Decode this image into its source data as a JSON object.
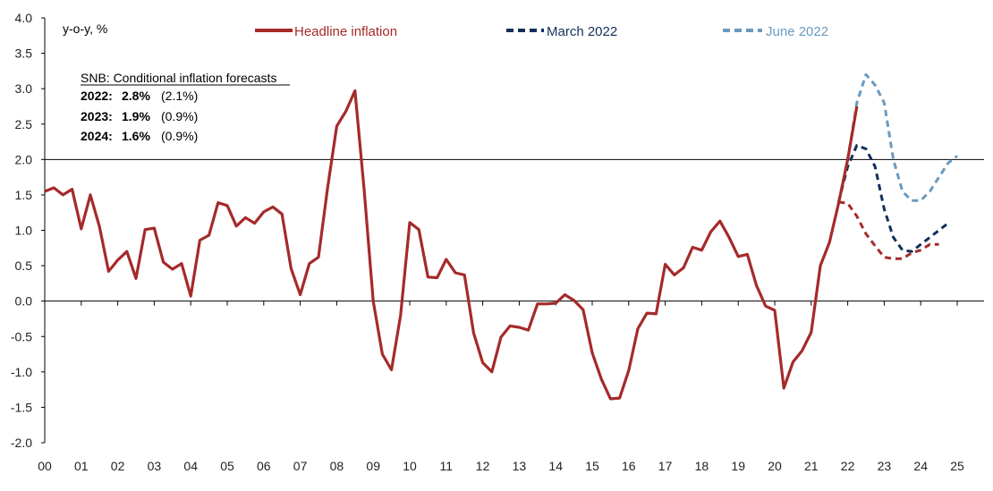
{
  "chart_data": {
    "type": "line",
    "ylabel": "y-o-y, %",
    "ylim": [
      -2.0,
      4.0
    ],
    "y_ticks": [
      "4.0",
      "3.5",
      "3.0",
      "2.5",
      "2.0",
      "1.5",
      "1.0",
      "0.5",
      "0.0",
      "-0.5",
      "-1.0",
      "-1.5",
      "-2.0"
    ],
    "x_ticks": [
      "00",
      "01",
      "02",
      "03",
      "04",
      "05",
      "06",
      "07",
      "08",
      "09",
      "10",
      "11",
      "12",
      "13",
      "14",
      "15",
      "16",
      "17",
      "18",
      "19",
      "20",
      "21",
      "22",
      "23",
      "24",
      "25"
    ],
    "reference_line": 2.0,
    "legend_position": "top",
    "note": {
      "title": "SNB: Conditional inflation forecasts",
      "rows": [
        {
          "year": "2022:",
          "value": "2.8%",
          "previous": "(2.1%)"
        },
        {
          "year": "2023:",
          "value": "1.9%",
          "previous": "(0.9%)"
        },
        {
          "year": "2024:",
          "value": "1.6%",
          "previous": "(0.9%)"
        }
      ]
    },
    "series": [
      {
        "name": "Headline inflation",
        "color": "#a52a2a",
        "style": "solid",
        "x": [
          2000.0,
          2000.25,
          2000.5,
          2000.75,
          2001.0,
          2001.25,
          2001.5,
          2001.75,
          2002.0,
          2002.25,
          2002.5,
          2002.75,
          2003.0,
          2003.25,
          2003.5,
          2003.75,
          2004.0,
          2004.25,
          2004.5,
          2004.75,
          2005.0,
          2005.25,
          2005.5,
          2005.75,
          2006.0,
          2006.25,
          2006.5,
          2006.75,
          2007.0,
          2007.25,
          2007.5,
          2007.75,
          2008.0,
          2008.25,
          2008.5,
          2008.75,
          2009.0,
          2009.25,
          2009.5,
          2009.75,
          2010.0,
          2010.25,
          2010.5,
          2010.75,
          2011.0,
          2011.25,
          2011.5,
          2011.75,
          2012.0,
          2012.25,
          2012.5,
          2012.75,
          2013.0,
          2013.25,
          2013.5,
          2013.75,
          2014.0,
          2014.25,
          2014.5,
          2014.75,
          2015.0,
          2015.25,
          2015.5,
          2015.75,
          2016.0,
          2016.25,
          2016.5,
          2016.75,
          2017.0,
          2017.25,
          2017.5,
          2017.75,
          2018.0,
          2018.25,
          2018.5,
          2018.75,
          2019.0,
          2019.25,
          2019.5,
          2019.75,
          2020.0,
          2020.25,
          2020.5,
          2020.75,
          2021.0,
          2021.25,
          2021.5,
          2021.75,
          2022.0,
          2022.25
        ],
        "values": [
          1.55,
          1.6,
          1.5,
          1.58,
          1.02,
          1.5,
          1.05,
          0.42,
          0.58,
          0.7,
          0.32,
          1.01,
          1.03,
          0.55,
          0.45,
          0.53,
          0.07,
          0.86,
          0.93,
          1.39,
          1.35,
          1.06,
          1.18,
          1.1,
          1.26,
          1.33,
          1.23,
          0.46,
          0.09,
          0.53,
          0.62,
          1.6,
          2.47,
          2.68,
          2.97,
          1.58,
          0.0,
          -0.75,
          -0.97,
          -0.2,
          1.11,
          1.01,
          0.34,
          0.33,
          0.59,
          0.4,
          0.37,
          -0.45,
          -0.87,
          -1.0,
          -0.51,
          -0.35,
          -0.37,
          -0.41,
          -0.04,
          -0.04,
          -0.03,
          0.09,
          0.01,
          -0.12,
          -0.73,
          -1.1,
          -1.38,
          -1.37,
          -0.98,
          -0.39,
          -0.17,
          -0.18,
          0.52,
          0.37,
          0.47,
          0.76,
          0.72,
          0.98,
          1.13,
          0.9,
          0.63,
          0.66,
          0.22,
          -0.07,
          -0.13,
          -1.23,
          -0.86,
          -0.7,
          -0.44,
          0.5,
          0.83,
          1.38,
          2.0,
          2.75
        ]
      },
      {
        "name": "March 2022",
        "color": "#12305a",
        "style": "dashed",
        "x": [
          2021.75,
          2022.0,
          2022.25,
          2022.5,
          2022.75,
          2023.0,
          2023.25,
          2023.5,
          2023.75,
          2024.0,
          2024.25,
          2024.5,
          2024.75
        ],
        "values": [
          1.4,
          1.9,
          2.2,
          2.15,
          1.9,
          1.3,
          0.9,
          0.72,
          0.7,
          0.8,
          0.9,
          1.0,
          1.1
        ]
      },
      {
        "name": "June 2022",
        "color": "#6a9ac0",
        "style": "dashed",
        "x": [
          2021.75,
          2022.0,
          2022.25,
          2022.5,
          2022.75,
          2023.0,
          2023.25,
          2023.5,
          2023.75,
          2024.0,
          2024.25,
          2024.5,
          2024.75,
          2025.0
        ],
        "values": [
          1.4,
          2.0,
          2.8,
          3.2,
          3.05,
          2.8,
          2.0,
          1.55,
          1.42,
          1.42,
          1.55,
          1.75,
          1.95,
          2.05
        ]
      },
      {
        "name": "",
        "color": "#a52a2a",
        "style": "dashed",
        "x": [
          2021.75,
          2022.0,
          2022.25,
          2022.5,
          2022.75,
          2023.0,
          2023.25,
          2023.5,
          2023.75,
          2024.0,
          2024.25,
          2024.5
        ],
        "values": [
          1.4,
          1.38,
          1.2,
          0.95,
          0.78,
          0.62,
          0.6,
          0.6,
          0.68,
          0.72,
          0.8,
          0.8
        ]
      }
    ]
  }
}
